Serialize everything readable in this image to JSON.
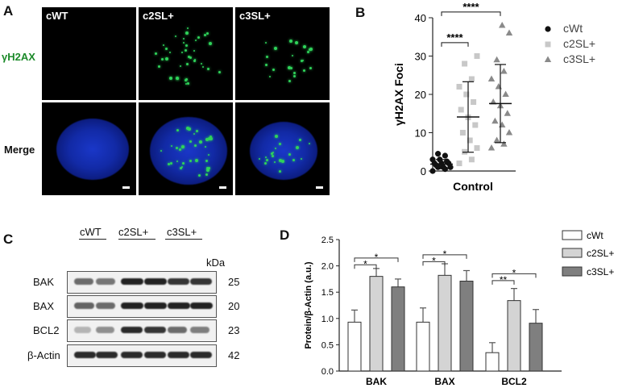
{
  "panels": {
    "A": "A",
    "B": "B",
    "C": "C",
    "D": "D"
  },
  "panel_a": {
    "columns": [
      "cWT",
      "c2SL+",
      "c3SL+"
    ],
    "rows": [
      "γH2AX",
      "Merge"
    ],
    "colors": {
      "foci": "#2fd35a",
      "nucleus": "#1a37c8",
      "row_label_h2ax": "#1c8a2a"
    }
  },
  "panel_c": {
    "lanes": [
      "cWT",
      "c2SL+",
      "c3SL+"
    ],
    "kda_header": "kDa",
    "blots": [
      {
        "name": "BAK",
        "kda": "25",
        "band_levels": [
          0.55,
          0.5,
          0.95,
          0.95,
          0.85,
          0.85
        ]
      },
      {
        "name": "BAX",
        "kda": "20",
        "band_levels": [
          0.6,
          0.55,
          0.95,
          0.95,
          0.95,
          0.95
        ]
      },
      {
        "name": "BCL2",
        "kda": "23",
        "band_levels": [
          0.15,
          0.35,
          0.9,
          0.85,
          0.55,
          0.45
        ]
      },
      {
        "name": "β-Actin",
        "kda": "42",
        "band_levels": [
          0.9,
          0.9,
          0.9,
          0.9,
          0.9,
          0.9
        ]
      }
    ]
  },
  "chart_data": [
    {
      "type": "scatter",
      "panel": "B",
      "ylabel": "γH2AX Foci",
      "xlabel": "",
      "category": "Control",
      "ylim": [
        0,
        40
      ],
      "yticks": [
        "0",
        "10",
        "20",
        "30",
        "40"
      ],
      "legend": [
        "cWt",
        "c2SL+",
        "c3SL+"
      ],
      "legend_position": "right",
      "colors": [
        "#111111",
        "#c8c8c8",
        "#8a8a8a"
      ],
      "series": [
        {
          "name": "cWt",
          "mean": 1.8,
          "sd": 1.2,
          "values": [
            0,
            0.5,
            1,
            1,
            1,
            1.5,
            2,
            2,
            2,
            2.5,
            3,
            3,
            4,
            4.5
          ]
        },
        {
          "name": "c2SL+",
          "mean": 14.1,
          "sd": 9.2,
          "values": [
            2,
            3,
            5,
            6,
            8,
            10,
            12,
            14,
            16,
            18,
            20,
            22,
            24,
            28,
            30
          ]
        },
        {
          "name": "c3SL+",
          "mean": 17.6,
          "sd": 10.2,
          "values": [
            6,
            7,
            8,
            10,
            12,
            13,
            15,
            17,
            18,
            20,
            22,
            24,
            26,
            29,
            36,
            38
          ]
        }
      ],
      "significance": [
        {
          "label": "****",
          "pair": [
            "cWt",
            "c2SL+"
          ]
        },
        {
          "label": "****",
          "pair": [
            "cWt",
            "c3SL+"
          ]
        }
      ]
    },
    {
      "type": "bar",
      "panel": "D",
      "ylabel": "Protein/β-Actin (a.u.)",
      "xlabel": "",
      "categories": [
        "BAK",
        "BAX",
        "BCL2"
      ],
      "ylim": [
        0,
        2.5
      ],
      "yticks": [
        "0.0",
        "0.5",
        "1.0",
        "1.5",
        "2.0",
        "2.5"
      ],
      "legend": [
        "cWt",
        "c2SL+",
        "c3SL+"
      ],
      "legend_position": "top-right",
      "colors": [
        "#ffffff",
        "#d4d4d4",
        "#7f7f7f"
      ],
      "series": [
        {
          "name": "cWt",
          "values": [
            0.93,
            0.93,
            0.35
          ],
          "errors": [
            0.23,
            0.27,
            0.19
          ]
        },
        {
          "name": "c2SL+",
          "values": [
            1.8,
            1.82,
            1.34
          ],
          "errors": [
            0.15,
            0.22,
            0.23
          ]
        },
        {
          "name": "c3SL+",
          "values": [
            1.6,
            1.71,
            0.91
          ],
          "errors": [
            0.15,
            0.2,
            0.26
          ]
        }
      ],
      "significance": [
        {
          "category": "BAK",
          "label": "*",
          "pair": [
            "cWt",
            "c2SL+"
          ]
        },
        {
          "category": "BAK",
          "label": "*",
          "pair": [
            "cWt",
            "c3SL+"
          ]
        },
        {
          "category": "BAX",
          "label": "*",
          "pair": [
            "cWt",
            "c2SL+"
          ]
        },
        {
          "category": "BAX",
          "label": "*",
          "pair": [
            "cWt",
            "c3SL+"
          ]
        },
        {
          "category": "BCL2",
          "label": "**",
          "pair": [
            "cWt",
            "c2SL+"
          ]
        },
        {
          "category": "BCL2",
          "label": "*",
          "pair": [
            "cWt",
            "c3SL+"
          ]
        }
      ]
    }
  ]
}
